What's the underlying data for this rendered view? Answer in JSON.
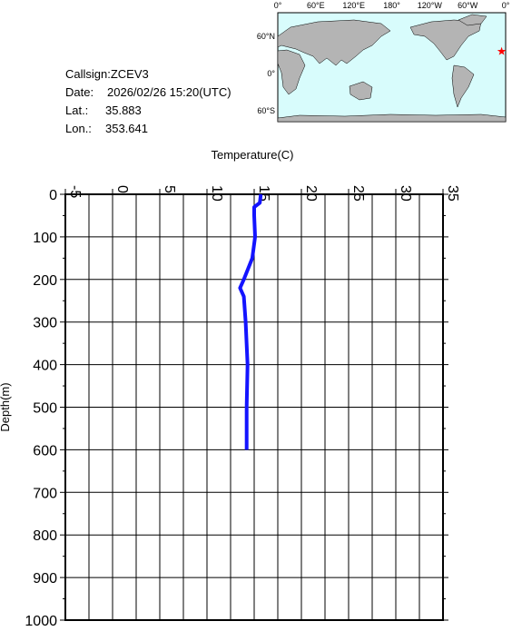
{
  "header": {
    "callsign": "Callsign:ZCEV3",
    "date_label": "Date:",
    "date": "2026/02/26 15:20(UTC)",
    "lat_label": "Lat.:",
    "lat": 35.883,
    "lon_label": "Lon.:",
    "lon": 353.641
  },
  "map": {
    "lon_labels": [
      "0°",
      "60°E",
      "120°E",
      "180°",
      "120°W",
      "60°W",
      "0°"
    ],
    "lat_labels": [
      "60°N",
      "0°",
      "60°S"
    ],
    "marker_color": "#ff0000",
    "land_color": "#b4b4b4",
    "ocean_color": "#d8fcfc"
  },
  "chart_data": {
    "type": "line",
    "x_label": "Temperature(C)",
    "y_label": "Depth(m)",
    "x": [
      15.7,
      15.6,
      15.0,
      15.0,
      15.1,
      14.8,
      13.9,
      13.5,
      13.9,
      14.1,
      14.3,
      14.2,
      14.2
    ],
    "values": [
      0,
      20,
      30,
      50,
      100,
      150,
      200,
      220,
      240,
      300,
      400,
      500,
      600
    ],
    "color": "#1414ff",
    "xlim": [
      -5,
      35
    ],
    "xticks": [
      -5,
      0,
      5,
      10,
      15,
      20,
      25,
      30,
      35
    ],
    "ylim": [
      0,
      1000
    ],
    "yticks": [
      0,
      100,
      200,
      300,
      400,
      500,
      600,
      700,
      800,
      900,
      1000
    ],
    "grid": true
  }
}
